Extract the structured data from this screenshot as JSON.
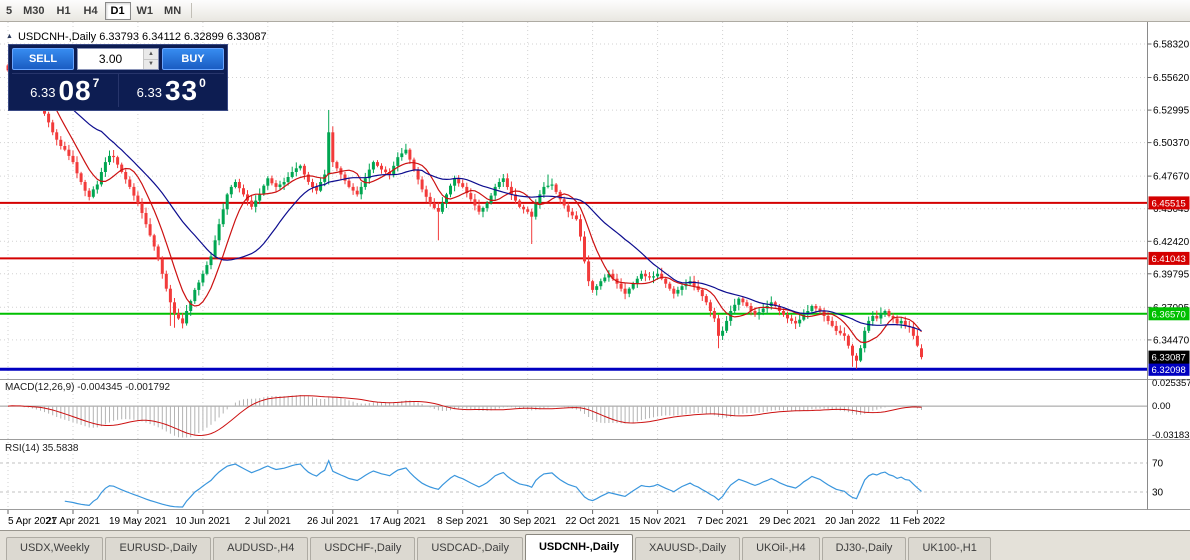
{
  "toolbar": {
    "timeframes": [
      "5",
      "M30",
      "H1",
      "H4",
      "D1",
      "W1",
      "MN"
    ],
    "active_timeframe": "D1"
  },
  "chart_header": {
    "collapse_icon": "▲",
    "title": "USDCNH-,Daily 6.33793 6.34112 6.32899 6.33087"
  },
  "trade_panel": {
    "sell_label": "SELL",
    "buy_label": "BUY",
    "volume": "3.00",
    "sell_price_small": "6.33",
    "sell_price_big": "08",
    "sell_price_sup": "7",
    "buy_price_small": "6.33",
    "buy_price_big": "33",
    "buy_price_sup": "0"
  },
  "indicators": {
    "macd_label": "MACD(12,26,9) -0.004345 -0.001792",
    "rsi_label": "RSI(14) 35.5838"
  },
  "tabs": {
    "items": [
      {
        "label": "USDX,Weekly",
        "active": false
      },
      {
        "label": "EURUSD-,Daily",
        "active": false
      },
      {
        "label": "AUDUSD-,H4",
        "active": false
      },
      {
        "label": "USDCHF-,Daily",
        "active": false
      },
      {
        "label": "USDCAD-,Daily",
        "active": false
      },
      {
        "label": "USDCNH-,Daily",
        "active": true
      },
      {
        "label": "XAUUSD-,Daily",
        "active": false
      },
      {
        "label": "UKOil-,H4",
        "active": false
      },
      {
        "label": "DJ30-,Daily",
        "active": false
      },
      {
        "label": "UK100-,H1",
        "active": false
      }
    ]
  },
  "chart_data": {
    "type": "candlestick",
    "symbol": "USDCNH-",
    "timeframe": "Daily",
    "last_ohlc": {
      "open": 6.33793,
      "high": 6.34112,
      "low": 6.32899,
      "close": 6.33087
    },
    "y_axis": {
      "ticks": [
        {
          "label": "6.58320",
          "value": 6.5832
        },
        {
          "label": "6.55620",
          "value": 6.5562
        },
        {
          "label": "6.52995",
          "value": 6.52995
        },
        {
          "label": "6.50370",
          "value": 6.5037
        },
        {
          "label": "6.47670",
          "value": 6.4767
        },
        {
          "label": "6.45045",
          "value": 6.45045
        },
        {
          "label": "6.42420",
          "value": 6.4242
        },
        {
          "label": "6.39795",
          "value": 6.39795
        },
        {
          "label": "6.37095",
          "value": 6.37095
        },
        {
          "label": "6.34470",
          "value": 6.3447
        }
      ]
    },
    "x_axis": {
      "labels": [
        "5 Apr 2021",
        "27 Apr 2021",
        "19 May 2021",
        "10 Jun 2021",
        "2 Jul 2021",
        "26 Jul 2021",
        "17 Aug 2021",
        "8 Sep 2021",
        "30 Sep 2021",
        "22 Oct 2021",
        "15 Nov 2021",
        "7 Dec 2021",
        "29 Dec 2021",
        "20 Jan 2022",
        "11 Feb 2022"
      ],
      "tick_every": 16
    },
    "levels": [
      {
        "label": "6.45515",
        "value": 6.45515,
        "color": "#d40000",
        "width": 2
      },
      {
        "label": "6.41043",
        "value": 6.41043,
        "color": "#d40000",
        "width": 2
      },
      {
        "label": "6.36570",
        "value": 6.3657,
        "color": "#00c000",
        "width": 2
      },
      {
        "label": "6.32098",
        "value": 6.32098,
        "color": "#0000c0",
        "width": 3
      }
    ],
    "current_price": {
      "label": "6.33087",
      "value": 6.33087,
      "color": "#000000"
    },
    "series": {
      "open_first": 6.566,
      "closes": [
        6.562,
        6.57,
        6.556,
        6.561,
        6.548,
        6.552,
        6.545,
        6.54,
        6.535,
        6.527,
        6.52,
        6.512,
        6.506,
        6.501,
        6.498,
        6.493,
        6.488,
        6.479,
        6.472,
        6.465,
        6.46,
        6.466,
        6.47,
        6.48,
        6.488,
        6.493,
        6.492,
        6.486,
        6.48,
        6.474,
        6.468,
        6.461,
        6.455,
        6.447,
        6.438,
        6.429,
        6.42,
        6.41,
        6.398,
        6.386,
        6.375,
        6.366,
        6.362,
        6.358,
        6.368,
        6.376,
        6.385,
        6.391,
        6.398,
        6.405,
        6.412,
        6.425,
        6.438,
        6.45,
        6.462,
        6.468,
        6.472,
        6.467,
        6.462,
        6.457,
        6.452,
        6.457,
        6.462,
        6.469,
        6.475,
        6.471,
        6.468,
        6.47,
        6.472,
        6.476,
        6.48,
        6.483,
        6.485,
        6.478,
        6.472,
        6.468,
        6.465,
        6.472,
        6.478,
        6.512,
        6.488,
        6.483,
        6.478,
        6.473,
        6.468,
        6.465,
        6.462,
        6.468,
        6.475,
        6.482,
        6.488,
        6.485,
        6.482,
        6.48,
        6.478,
        6.485,
        6.492,
        6.495,
        6.498,
        6.49,
        6.482,
        6.474,
        6.466,
        6.46,
        6.455,
        6.451,
        6.448,
        6.455,
        6.462,
        6.469,
        6.475,
        6.471,
        6.468,
        6.463,
        6.458,
        6.453,
        6.448,
        6.451,
        6.455,
        6.461,
        6.468,
        6.472,
        6.475,
        6.468,
        6.462,
        6.457,
        6.452,
        6.45,
        6.448,
        6.444,
        6.455,
        6.462,
        6.468,
        6.469,
        6.47,
        6.464,
        6.458,
        6.453,
        6.448,
        6.445,
        6.442,
        6.428,
        6.408,
        6.392,
        6.385,
        6.388,
        6.392,
        6.395,
        6.398,
        6.394,
        6.39,
        6.386,
        6.382,
        6.386,
        6.39,
        6.394,
        6.398,
        6.396,
        6.395,
        6.396,
        6.398,
        6.394,
        6.39,
        6.386,
        6.382,
        6.385,
        6.388,
        6.39,
        6.392,
        6.388,
        6.385,
        6.38,
        6.375,
        6.368,
        6.362,
        6.348,
        6.352,
        6.36,
        6.368,
        6.373,
        6.378,
        6.375,
        6.372,
        6.368,
        6.365,
        6.367,
        6.37,
        6.372,
        6.375,
        6.372,
        6.368,
        6.365,
        6.362,
        6.36,
        6.358,
        6.361,
        6.365,
        6.368,
        6.372,
        6.37,
        6.368,
        6.364,
        6.36,
        6.356,
        6.352,
        6.35,
        6.348,
        6.34,
        6.332,
        6.328,
        6.338,
        6.352,
        6.36,
        6.364,
        6.362,
        6.366,
        6.368,
        6.364,
        6.362,
        6.358,
        6.36,
        6.356,
        6.355,
        6.348,
        6.34,
        6.33087
      ],
      "wick_overrides": {
        "1": {
          "h": 6.576
        },
        "2": {
          "h": 6.5735
        },
        "40": {
          "l": 6.356
        },
        "41": {
          "l": 6.3545
        },
        "43": {
          "l": 6.354
        },
        "79": {
          "h": 6.53,
          "l": 6.47
        },
        "106": {
          "l": 6.425
        },
        "129": {
          "l": 6.422
        },
        "133": {
          "h": 6.478
        },
        "175": {
          "l": 6.338
        },
        "208": {
          "l": 6.323
        },
        "209": {
          "l": 6.3215
        },
        "225": {
          "o": 6.33793,
          "h": 6.34112,
          "l": 6.32899,
          "c": 6.33087
        }
      }
    },
    "moving_averages": [
      {
        "name": "ma-fast",
        "period": 8,
        "color": "#cc1111"
      },
      {
        "name": "ma-slow",
        "period": 24,
        "color": "#0d0d8f"
      }
    ],
    "macd": {
      "fast": 12,
      "slow": 26,
      "signal": 9,
      "value": -0.004345,
      "signal_value": -0.001792,
      "axis": [
        {
          "label": "0.025357",
          "value": 0.025357
        },
        {
          "label": "0.00",
          "value": 0
        },
        {
          "label": "-0.03183",
          "value": -0.03183
        }
      ],
      "hist_color": "#b4b4b4",
      "signal_color": "#cc1111"
    },
    "rsi": {
      "period": 14,
      "value": 35.5838,
      "color": "#3a96dd",
      "levels": [
        {
          "label": "70",
          "value": 70
        },
        {
          "label": "30",
          "value": 30
        }
      ]
    },
    "colors": {
      "bull": "#00a651",
      "bear": "#f23b3b",
      "grid": "#d2d2d2",
      "axis_text": "#000000",
      "divider": "#9c9c9c",
      "axis_line": "#8a8a8a"
    }
  }
}
